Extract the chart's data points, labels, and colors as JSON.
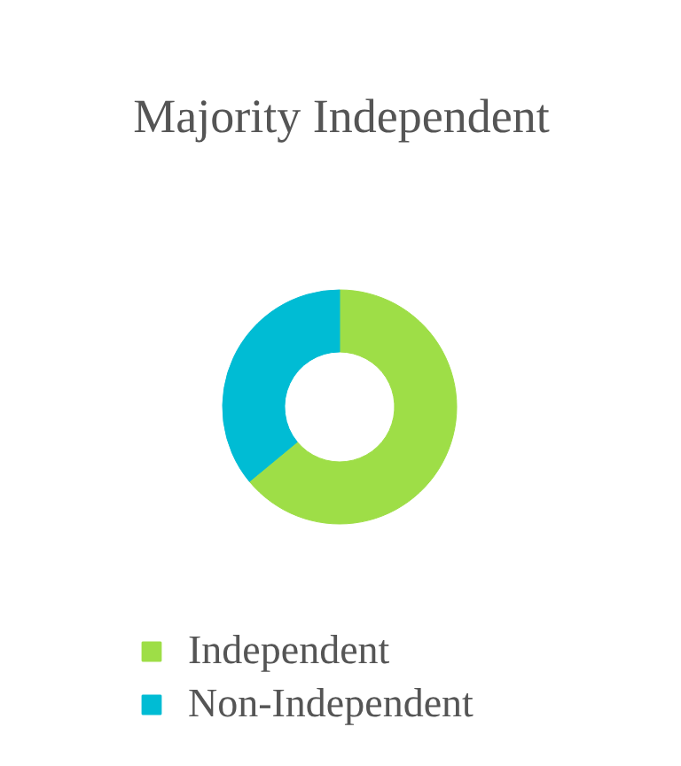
{
  "chart_data": {
    "type": "donut",
    "title": "Majority Independent",
    "categories": [
      "Independent",
      "Non-Independent"
    ],
    "values": [
      64,
      36
    ],
    "colors": [
      "#9ede47",
      "#00bcd4"
    ],
    "legend": "bottom"
  }
}
